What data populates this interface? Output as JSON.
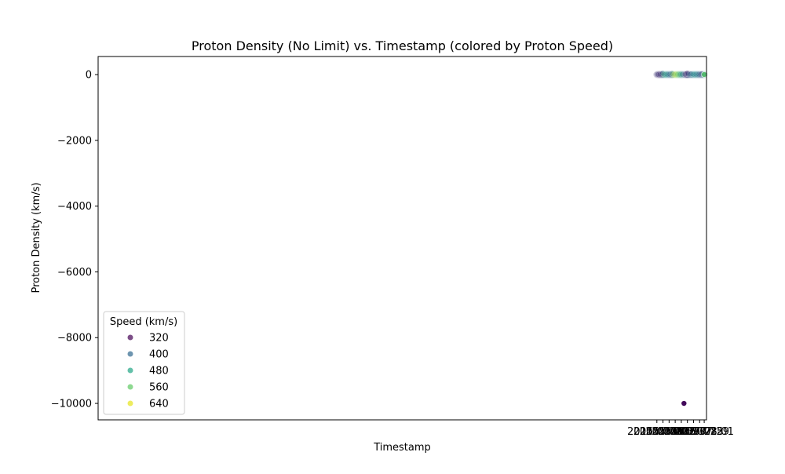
{
  "chart_data": {
    "type": "scatter",
    "title": "Proton Density (No Limit) vs. Timestamp (colored by Proton Speed)",
    "xlabel": "Timestamp",
    "ylabel": "Proton Density (km/s)",
    "xlim": [
      "2014-06-30T01:12",
      "2015-08-02T12:00"
    ],
    "ylim": [
      -10500,
      550
    ],
    "x_ticks": [
      "2015-07-01",
      "2015-07-05",
      "2015-07-09",
      "2015-07-13",
      "2015-07-17",
      "2015-07-21",
      "2015-07-25",
      "2015-07-29",
      "2015-08-01"
    ],
    "y_ticks": [
      0,
      -2000,
      -4000,
      -6000,
      -8000,
      -10000
    ],
    "y_tick_labels": [
      "0",
      "−2000",
      "−4000",
      "−6000",
      "−8000",
      "−10000"
    ],
    "grid": false,
    "legend": {
      "title": "Speed (km/s)",
      "placement": "lower-left",
      "entries": [
        {
          "label": "320",
          "color": "#440154"
        },
        {
          "label": "400",
          "color": "#31688e"
        },
        {
          "label": "480",
          "color": "#21a585"
        },
        {
          "label": "560",
          "color": "#5ec962"
        },
        {
          "label": "640",
          "color": "#e5e419"
        }
      ]
    },
    "colormap": "viridis",
    "series": [
      {
        "points": [
          {
            "x": "2015-07-01T00:00",
            "y": 5,
            "speed": 350
          },
          {
            "x": "2015-07-02T00:00",
            "y": 4,
            "speed": 340
          },
          {
            "x": "2015-07-03T00:00",
            "y": 6,
            "speed": 330
          },
          {
            "x": "2015-07-04T00:00",
            "y": 12,
            "speed": 320
          },
          {
            "x": "2015-07-04T18:00",
            "y": 40,
            "speed": 420
          },
          {
            "x": "2015-07-05T12:00",
            "y": 8,
            "speed": 520
          },
          {
            "x": "2015-07-06T12:00",
            "y": 5,
            "speed": 500
          },
          {
            "x": "2015-07-07T12:00",
            "y": 4,
            "speed": 470
          },
          {
            "x": "2015-07-08T12:00",
            "y": 5,
            "speed": 440
          },
          {
            "x": "2015-07-09T12:00",
            "y": 6,
            "speed": 400
          },
          {
            "x": "2015-07-10T12:00",
            "y": 8,
            "speed": 380
          },
          {
            "x": "2015-07-11T00:00",
            "y": 35,
            "speed": 450
          },
          {
            "x": "2015-07-11T12:00",
            "y": 10,
            "speed": 600
          },
          {
            "x": "2015-07-12T12:00",
            "y": 5,
            "speed": 640
          },
          {
            "x": "2015-07-13T12:00",
            "y": 4,
            "speed": 620
          },
          {
            "x": "2015-07-14T12:00",
            "y": 5,
            "speed": 580
          },
          {
            "x": "2015-07-15T12:00",
            "y": 4,
            "speed": 540
          },
          {
            "x": "2015-07-16T12:00",
            "y": 5,
            "speed": 500
          },
          {
            "x": "2015-07-17T12:00",
            "y": 6,
            "speed": 440
          },
          {
            "x": "2015-07-18T12:00",
            "y": -10000,
            "speed": 330
          },
          {
            "x": "2015-07-18T14:00",
            "y": -10000,
            "speed": 320
          },
          {
            "x": "2015-07-18T16:00",
            "y": -10000,
            "speed": 300
          },
          {
            "x": "2015-07-18T18:00",
            "y": -10000,
            "speed": 290
          },
          {
            "x": "2015-07-19T12:00",
            "y": 10,
            "speed": 340
          },
          {
            "x": "2015-07-20T12:00",
            "y": 20,
            "speed": 330
          },
          {
            "x": "2015-07-21T00:00",
            "y": 45,
            "speed": 310
          },
          {
            "x": "2015-07-21T12:00",
            "y": 15,
            "speed": 380
          },
          {
            "x": "2015-07-22T12:00",
            "y": 8,
            "speed": 420
          },
          {
            "x": "2015-07-23T12:00",
            "y": 20,
            "speed": 400
          },
          {
            "x": "2015-07-24T12:00",
            "y": 6,
            "speed": 460
          },
          {
            "x": "2015-07-25T12:00",
            "y": 5,
            "speed": 480
          },
          {
            "x": "2015-07-26T12:00",
            "y": 4,
            "speed": 460
          },
          {
            "x": "2015-07-27T12:00",
            "y": 5,
            "speed": 440
          },
          {
            "x": "2015-07-28T12:00",
            "y": 5,
            "speed": 420
          },
          {
            "x": "2015-07-29T12:00",
            "y": 6,
            "speed": 380
          },
          {
            "x": "2015-07-30T12:00",
            "y": 25,
            "speed": 340
          },
          {
            "x": "2015-07-31T12:00",
            "y": 8,
            "speed": 480
          },
          {
            "x": "2015-08-01T00:00",
            "y": 2,
            "speed": 560
          }
        ]
      }
    ]
  }
}
